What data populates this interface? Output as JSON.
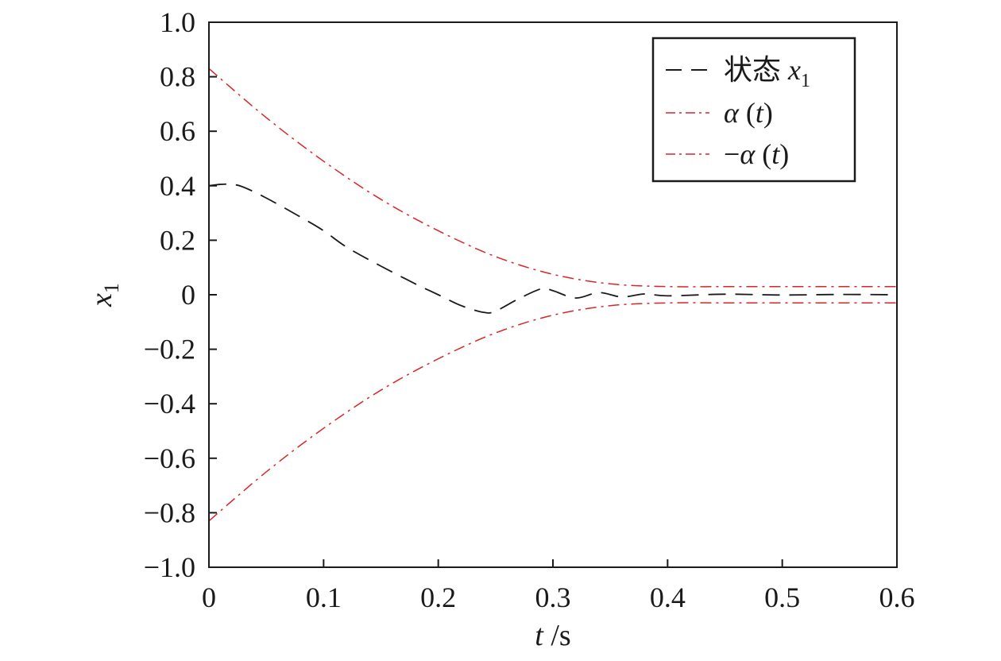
{
  "chart_data": {
    "type": "line",
    "xlabel": {
      "var": "t",
      "unit": " /s"
    },
    "ylabel": {
      "var": "x",
      "sub": "1"
    },
    "xlim": [
      0,
      0.6
    ],
    "ylim": [
      -1.0,
      1.0
    ],
    "x_ticks": [
      0,
      0.1,
      0.2,
      0.3,
      0.4,
      0.5,
      0.6
    ],
    "x_tick_labels": [
      "0",
      "0.1",
      "0.2",
      "0.3",
      "0.4",
      "0.5",
      "0.6"
    ],
    "y_ticks": [
      -1.0,
      -0.8,
      -0.6,
      -0.4,
      -0.2,
      0,
      0.2,
      0.4,
      0.6,
      0.8,
      1.0
    ],
    "y_tick_labels": [
      "−1.0",
      "−0.8",
      "−0.6",
      "−0.4",
      "−0.2",
      "0",
      "0.2",
      "0.4",
      "0.6",
      "0.8",
      "1.0"
    ],
    "grid": false,
    "legend_position": "top-right",
    "series": [
      {
        "name": "状态 x1",
        "legend_prefix": "状态 ",
        "legend_var": "x",
        "legend_sub": "1",
        "color": "#1a1a1a",
        "dash": "dashed",
        "x": [
          0,
          0.01,
          0.02,
          0.03,
          0.05,
          0.08,
          0.1,
          0.12,
          0.15,
          0.18,
          0.2,
          0.22,
          0.24,
          0.25,
          0.27,
          0.29,
          0.3,
          0.32,
          0.34,
          0.36,
          0.38,
          0.4,
          0.45,
          0.5,
          0.55,
          0.6
        ],
        "y": [
          0.4,
          0.405,
          0.405,
          0.395,
          0.355,
          0.285,
          0.235,
          0.175,
          0.105,
          0.04,
          0.0,
          -0.04,
          -0.065,
          -0.06,
          -0.015,
          0.022,
          0.015,
          -0.012,
          0.008,
          -0.008,
          0.003,
          -0.004,
          0.002,
          -0.001,
          0.001,
          0.0
        ]
      },
      {
        "name": "α (t)",
        "legend_var": "α",
        "legend_arg": "t",
        "color": "#d62728",
        "dash": "dashdot",
        "x": [
          0,
          0.05,
          0.1,
          0.15,
          0.2,
          0.25,
          0.3,
          0.35,
          0.4,
          0.45,
          0.5,
          0.55,
          0.6
        ],
        "y": [
          0.83,
          0.65,
          0.49,
          0.35,
          0.235,
          0.14,
          0.075,
          0.04,
          0.03,
          0.03,
          0.03,
          0.03,
          0.03
        ]
      },
      {
        "name": "−α (t)",
        "legend_prefix": "−",
        "legend_var": "α",
        "legend_arg": "t",
        "color": "#d62728",
        "dash": "dashdot",
        "x": [
          0,
          0.05,
          0.1,
          0.15,
          0.2,
          0.25,
          0.3,
          0.35,
          0.4,
          0.45,
          0.5,
          0.55,
          0.6
        ],
        "y": [
          -0.83,
          -0.65,
          -0.49,
          -0.35,
          -0.235,
          -0.14,
          -0.075,
          -0.04,
          -0.03,
          -0.03,
          -0.03,
          -0.03,
          -0.03
        ]
      }
    ]
  }
}
